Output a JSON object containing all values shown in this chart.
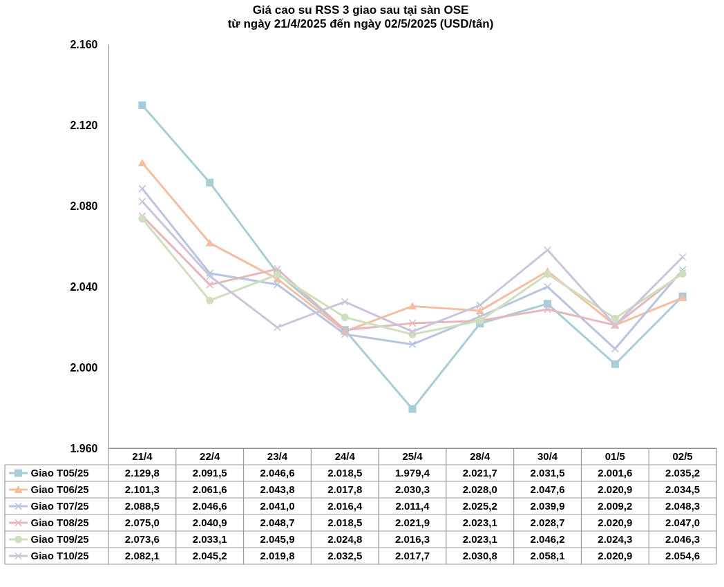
{
  "chart_data": {
    "type": "line",
    "title": "Giá cao su RSS 3 giao sau tại sàn OSE",
    "subtitle": "từ ngày 21/4/2025 đến ngày 02/5/2025 (USD/tấn)",
    "categories": [
      "21/4",
      "22/4",
      "23/4",
      "24/4",
      "25/4",
      "28/4",
      "30/4",
      "01/5",
      "02/5"
    ],
    "ylim": [
      1960,
      2160
    ],
    "yticks": [
      {
        "value": 1960,
        "label": "1.960"
      },
      {
        "value": 2000,
        "label": "2.000"
      },
      {
        "value": 2040,
        "label": "2.040"
      },
      {
        "value": 2080,
        "label": "2.080"
      },
      {
        "value": 2120,
        "label": "2.120"
      },
      {
        "value": 2160,
        "label": "2.160"
      }
    ],
    "tick_labels": "y",
    "legend": "bottom",
    "series": [
      {
        "name": "Giao T05/25",
        "color": "#a9cdd8",
        "marker": "square",
        "values": [
          2129.8,
          2091.5,
          2046.6,
          2018.5,
          1979.4,
          2021.7,
          2031.5,
          2001.6,
          2035.2
        ],
        "value_labels": [
          "2.129,8",
          "2.091,5",
          "2.046,6",
          "2.018,5",
          "1.979,4",
          "2.021,7",
          "2.031,5",
          "2.001,6",
          "2.035,2"
        ]
      },
      {
        "name": "Giao T06/25",
        "color": "#f6bea0",
        "marker": "triangle",
        "values": [
          2101.3,
          2061.6,
          2043.8,
          2017.8,
          2030.3,
          2028.0,
          2047.6,
          2020.9,
          2034.5
        ],
        "value_labels": [
          "2.101,3",
          "2.061,6",
          "2.043,8",
          "2.017,8",
          "2.030,3",
          "2.028,0",
          "2.047,6",
          "2.020,9",
          "2.034,5"
        ]
      },
      {
        "name": "Giao T07/25",
        "color": "#b9c3e2",
        "marker": "cross",
        "values": [
          2088.5,
          2046.6,
          2041.0,
          2016.4,
          2011.4,
          2025.2,
          2039.9,
          2009.2,
          2048.3
        ],
        "value_labels": [
          "2.088,5",
          "2.046,6",
          "2.041,0",
          "2.016,4",
          "2.011,4",
          "2.025,2",
          "2.039,9",
          "2.009,2",
          "2.048,3"
        ]
      },
      {
        "name": "Giao T08/25",
        "color": "#e4b9bd",
        "marker": "cross",
        "values": [
          2075.0,
          2040.9,
          2048.7,
          2018.5,
          2021.9,
          2023.1,
          2028.7,
          2020.9,
          2047.0
        ],
        "value_labels": [
          "2.075,0",
          "2.040,9",
          "2.048,7",
          "2.018,5",
          "2.021,9",
          "2.023,1",
          "2.028,7",
          "2.020,9",
          "2.047,0"
        ]
      },
      {
        "name": "Giao T09/25",
        "color": "#cfdfbd",
        "marker": "circle",
        "values": [
          2073.6,
          2033.1,
          2045.9,
          2024.8,
          2016.3,
          2023.1,
          2046.2,
          2024.3,
          2046.3
        ],
        "value_labels": [
          "2.073,6",
          "2.033,1",
          "2.045,9",
          "2.024,8",
          "2.016,3",
          "2.023,1",
          "2.046,2",
          "2.024,3",
          "2.046,3"
        ]
      },
      {
        "name": "Giao T10/25",
        "color": "#ccc3dd",
        "marker": "cross",
        "values": [
          2082.1,
          2045.2,
          2019.8,
          2032.5,
          2017.7,
          2030.8,
          2058.1,
          2020.9,
          2054.6
        ],
        "value_labels": [
          "2.082,1",
          "2.045,2",
          "2.019,8",
          "2.032,5",
          "2.017,7",
          "2.030,8",
          "2.058,1",
          "2.020,9",
          "2.054,6"
        ]
      }
    ]
  }
}
